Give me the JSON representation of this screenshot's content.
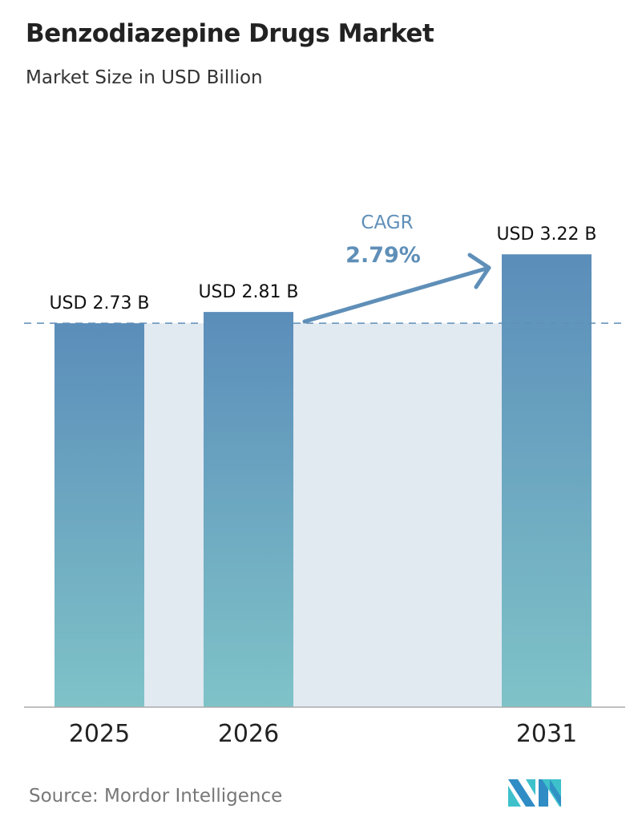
{
  "title": "Benzodiazepine Drugs Market",
  "subtitle": "Market Size in USD Billion",
  "source": "Source:  Mordor Intelligence",
  "logo_text": "Mordor Intelligence",
  "chart_data": {
    "type": "bar",
    "categories": [
      "2025",
      "2026",
      "2031"
    ],
    "values": [
      2.73,
      2.81,
      3.22
    ],
    "data_labels": [
      "USD 2.73 B",
      "USD 2.81 B",
      "USD 3.22 B"
    ],
    "ylim": [
      0,
      3.22
    ],
    "grid": false,
    "annotation": {
      "label": "CAGR",
      "value": "2.79%"
    },
    "colors": {
      "bar_top": "#5b8dba",
      "bar_bottom": "#7fc3c8",
      "shade": "#e1e9f1",
      "annotation": "#5f8fb8",
      "dashed_line": "#5f8fb8"
    }
  }
}
